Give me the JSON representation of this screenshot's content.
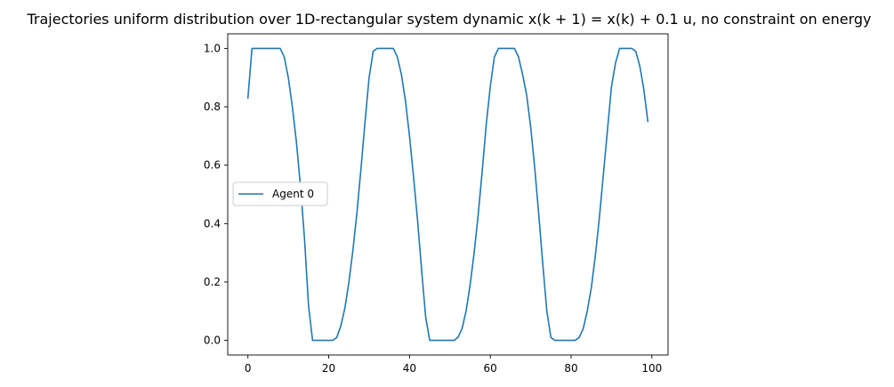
{
  "chart_data": {
    "type": "line",
    "title": "Trajectories uniform distribution over 1D-rectangular system dynamic x(k + 1) = x(k) + 0.1 u, no constraint on energy",
    "xlabel": "",
    "ylabel": "",
    "xlim": [
      -5,
      104
    ],
    "ylim": [
      -0.05,
      1.05
    ],
    "x_ticks": [
      0,
      20,
      40,
      60,
      80,
      100
    ],
    "y_ticks": [
      0.0,
      0.2,
      0.4,
      0.6,
      0.8,
      1.0
    ],
    "x_tick_labels": [
      "0",
      "20",
      "40",
      "60",
      "80",
      "100"
    ],
    "y_tick_labels": [
      "0.0",
      "0.2",
      "0.4",
      "0.6",
      "0.8",
      "1.0"
    ],
    "grid": false,
    "legend_position": "center-left",
    "line_color": "#1f77b4",
    "series": [
      {
        "name": "Agent 0",
        "x": [
          0,
          1,
          2,
          3,
          4,
          5,
          6,
          7,
          8,
          9,
          10,
          11,
          12,
          13,
          14,
          15,
          16,
          17,
          18,
          19,
          20,
          21,
          22,
          23,
          24,
          25,
          26,
          27,
          28,
          29,
          30,
          31,
          32,
          33,
          34,
          35,
          36,
          37,
          38,
          39,
          40,
          41,
          42,
          43,
          44,
          45,
          46,
          47,
          48,
          49,
          50,
          51,
          52,
          53,
          54,
          55,
          56,
          57,
          58,
          59,
          60,
          61,
          62,
          63,
          64,
          65,
          66,
          67,
          68,
          69,
          70,
          71,
          72,
          73,
          74,
          75,
          76,
          77,
          78,
          79,
          80,
          81,
          82,
          83,
          84,
          85,
          86,
          87,
          88,
          89,
          90,
          91,
          92,
          93,
          94,
          95,
          96,
          97,
          98,
          99
        ],
        "y": [
          0.83,
          1.0,
          1.0,
          1.0,
          1.0,
          1.0,
          1.0,
          1.0,
          1.0,
          0.97,
          0.9,
          0.8,
          0.68,
          0.53,
          0.35,
          0.12,
          0.0,
          0.0,
          0.0,
          0.0,
          0.0,
          0.0,
          0.01,
          0.05,
          0.11,
          0.2,
          0.31,
          0.44,
          0.59,
          0.75,
          0.9,
          0.99,
          1.0,
          1.0,
          1.0,
          1.0,
          1.0,
          0.97,
          0.91,
          0.82,
          0.7,
          0.56,
          0.41,
          0.24,
          0.08,
          0.0,
          0.0,
          0.0,
          0.0,
          0.0,
          0.0,
          0.0,
          0.01,
          0.04,
          0.1,
          0.19,
          0.3,
          0.43,
          0.58,
          0.74,
          0.87,
          0.97,
          1.0,
          1.0,
          1.0,
          1.0,
          1.0,
          0.97,
          0.91,
          0.84,
          0.73,
          0.59,
          0.43,
          0.26,
          0.1,
          0.01,
          0.0,
          0.0,
          0.0,
          0.0,
          0.0,
          0.0,
          0.01,
          0.04,
          0.1,
          0.18,
          0.29,
          0.42,
          0.57,
          0.72,
          0.87,
          0.95,
          1.0,
          1.0,
          1.0,
          1.0,
          0.99,
          0.94,
          0.86,
          0.75
        ]
      }
    ]
  }
}
